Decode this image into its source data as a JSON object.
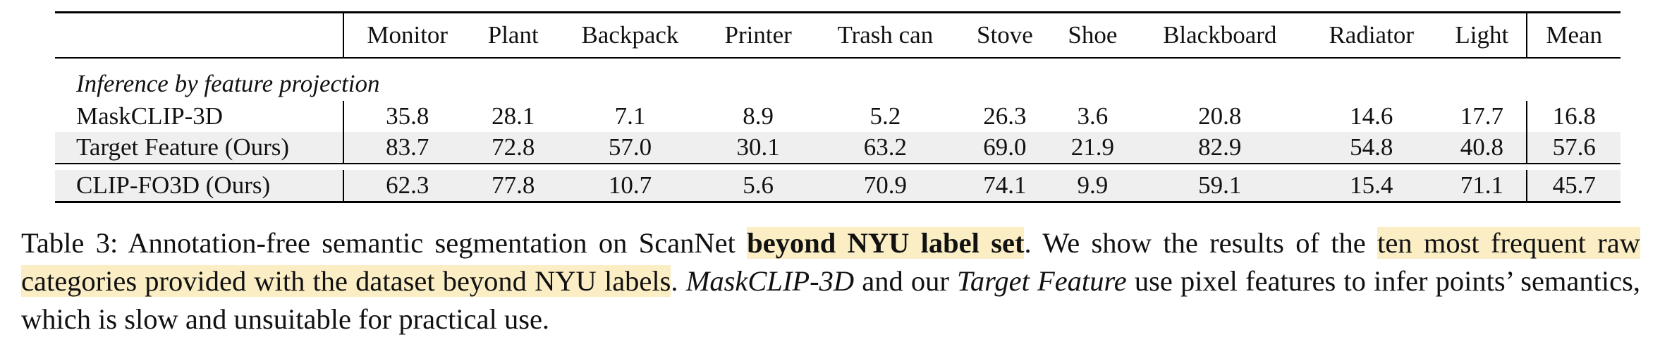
{
  "table": {
    "columns": [
      "Monitor",
      "Plant",
      "Backpack",
      "Printer",
      "Trash can",
      "Stove",
      "Shoe",
      "Blackboard",
      "Radiator",
      "Light",
      "Mean"
    ],
    "section_label": "Inference by feature projection",
    "rows": [
      {
        "method": "MaskCLIP-3D",
        "values": [
          "35.8",
          "28.1",
          "7.1",
          "8.9",
          "5.2",
          "26.3",
          "3.6",
          "20.8",
          "14.6",
          "17.7",
          "16.8"
        ],
        "bold": [
          false,
          false,
          false,
          false,
          false,
          false,
          false,
          false,
          false,
          false,
          false
        ]
      },
      {
        "method": "Target Feature (Ours)",
        "values": [
          "83.7",
          "72.8",
          "57.0",
          "30.1",
          "63.2",
          "69.0",
          "21.9",
          "82.9",
          "54.8",
          "40.8",
          "57.6"
        ],
        "bold": [
          true,
          false,
          true,
          true,
          false,
          false,
          true,
          true,
          true,
          false,
          true
        ]
      },
      {
        "method": "CLIP-FO3D (Ours)",
        "values": [
          "62.3",
          "77.8",
          "10.7",
          "5.6",
          "70.9",
          "74.1",
          "9.9",
          "59.1",
          "15.4",
          "71.1",
          "45.7"
        ],
        "bold": [
          false,
          true,
          false,
          false,
          true,
          true,
          false,
          false,
          false,
          true,
          false
        ]
      }
    ]
  },
  "caption": {
    "p1": "Table 3:  Annotation-free semantic segmentation on ScanNet ",
    "b1": "beyond NYU label set",
    "p2": ".  We show the results of the ",
    "h1": "ten most frequent raw categories provided with the dataset beyond NYU labels",
    "p3": ".  ",
    "i1": "MaskCLIP-3D",
    "p4": " and our ",
    "i2": "Target Feature",
    "p5": " use pixel features to infer points’ semantics, which is slow and unsuitable for practical use."
  }
}
